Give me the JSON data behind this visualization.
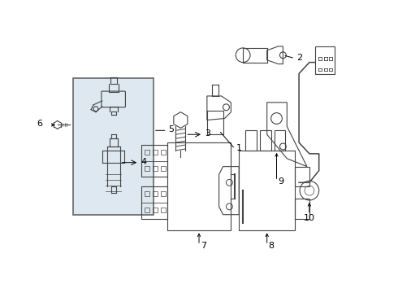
{
  "bg_color": "#f5f5f5",
  "line_color": "#444444",
  "label_color": "#000000",
  "box_bg": "#dde8f0",
  "box_stroke": "#666666",
  "figsize": [
    4.9,
    3.6
  ],
  "dpi": 100,
  "white": "#ffffff"
}
